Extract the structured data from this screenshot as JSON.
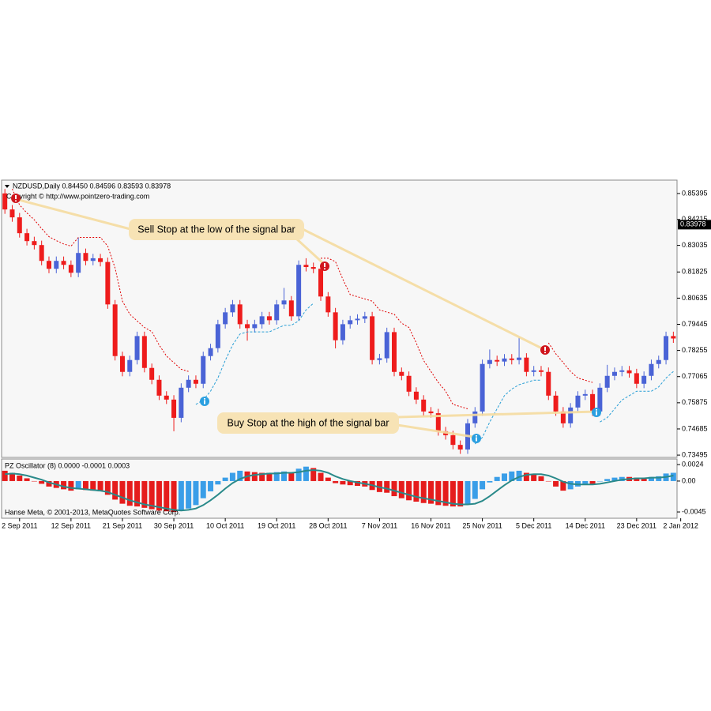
{
  "chart_data": {
    "type": "candlestick",
    "header": "NZDUSD,Daily  0.84450 0.84596 0.83593 0.83978",
    "copyright": "Copyright © http://www.pointzero-trading.com",
    "footer": "Hanse Meta, © 2001-2013, MetaQuotes Software Corp.",
    "annotations": [
      "Sell Stop at the low of the signal bar",
      "Buy Stop at the high of the signal bar"
    ],
    "bull_color": "#4a63d6",
    "bear_color": "#ee1c1c",
    "open": [
      0.854,
      0.8467,
      0.8431,
      0.8359,
      0.8323,
      0.8305,
      0.8233,
      0.8197,
      0.8233,
      0.8215,
      0.8179,
      0.8269,
      0.8233,
      0.8245,
      0.8228,
      0.8035,
      0.78,
      0.7728,
      0.7782,
      0.7891,
      0.7746,
      0.7692,
      0.762,
      0.7602,
      0.7519,
      0.7656,
      0.7692,
      0.7674,
      0.78,
      0.7836,
      0.7945,
      0.7999,
      0.8035,
      0.7945,
      0.7927,
      0.7945,
      0.7981,
      0.7963,
      0.8035,
      0.8053,
      0.7981,
      0.8215,
      0.8205,
      0.8197,
      0.8071,
      0.7999,
      0.7872,
      0.7945,
      0.7963,
      0.797,
      0.7981,
      0.7782,
      0.779,
      0.7909,
      0.7728,
      0.771,
      0.7638,
      0.7602,
      0.7548,
      0.754,
      0.7458,
      0.744,
      0.7396,
      0.7375,
      0.7494,
      0.7548,
      0.7764,
      0.7782,
      0.7775,
      0.7789,
      0.7782,
      0.7793,
      0.7728,
      0.7735,
      0.7728,
      0.762,
      0.7548,
      0.7494,
      0.7566,
      0.762,
      0.7627,
      0.7548,
      0.7656,
      0.771,
      0.7728,
      0.7735,
      0.7722,
      0.7674,
      0.771,
      0.7764,
      0.7782,
      0.7891
    ],
    "high": [
      0.856,
      0.8487,
      0.8451,
      0.8379,
      0.8343,
      0.8325,
      0.8253,
      0.8253,
      0.8253,
      0.8235,
      0.834,
      0.8289,
      0.8265,
      0.8265,
      0.8248,
      0.8055,
      0.782,
      0.7802,
      0.7911,
      0.7911,
      0.7766,
      0.7712,
      0.764,
      0.7622,
      0.7676,
      0.7712,
      0.7712,
      0.782,
      0.7856,
      0.7965,
      0.8019,
      0.8055,
      0.8055,
      0.7965,
      0.7965,
      0.8001,
      0.8001,
      0.8055,
      0.811,
      0.8073,
      0.8235,
      0.8245,
      0.8225,
      0.8217,
      0.8091,
      0.8019,
      0.7965,
      0.7983,
      0.799,
      0.8001,
      0.8001,
      0.781,
      0.7929,
      0.7929,
      0.7748,
      0.773,
      0.7658,
      0.7622,
      0.7568,
      0.756,
      0.7478,
      0.746,
      0.7416,
      0.7514,
      0.7568,
      0.7784,
      0.783,
      0.7802,
      0.7809,
      0.7809,
      0.7885,
      0.7813,
      0.7755,
      0.7755,
      0.7748,
      0.764,
      0.7568,
      0.7586,
      0.764,
      0.7647,
      0.7647,
      0.7676,
      0.776,
      0.7748,
      0.7755,
      0.7755,
      0.7742,
      0.773,
      0.7784,
      0.7802,
      0.7911,
      0.7911
    ],
    "low": [
      0.8447,
      0.8411,
      0.8339,
      0.8303,
      0.8285,
      0.8213,
      0.8177,
      0.8177,
      0.8195,
      0.8159,
      0.8159,
      0.8213,
      0.8213,
      0.8208,
      0.8015,
      0.778,
      0.7708,
      0.7708,
      0.7762,
      0.7726,
      0.7672,
      0.76,
      0.7582,
      0.7458,
      0.7499,
      0.7636,
      0.7654,
      0.7654,
      0.778,
      0.7816,
      0.7925,
      0.7979,
      0.7925,
      0.787,
      0.7907,
      0.7925,
      0.7943,
      0.7943,
      0.8015,
      0.7961,
      0.7961,
      0.8185,
      0.8177,
      0.8051,
      0.7979,
      0.7835,
      0.7852,
      0.7925,
      0.7943,
      0.795,
      0.7762,
      0.7762,
      0.777,
      0.7708,
      0.769,
      0.7618,
      0.7582,
      0.7528,
      0.752,
      0.7438,
      0.742,
      0.7376,
      0.7355,
      0.7355,
      0.7474,
      0.7528,
      0.7744,
      0.7755,
      0.7755,
      0.7762,
      0.7762,
      0.7708,
      0.7708,
      0.7708,
      0.76,
      0.7528,
      0.7474,
      0.7474,
      0.7546,
      0.76,
      0.7528,
      0.7528,
      0.7636,
      0.769,
      0.7708,
      0.7702,
      0.7654,
      0.7654,
      0.769,
      0.7744,
      0.7762,
      0.786
    ],
    "close": [
      0.8467,
      0.8431,
      0.8359,
      0.8323,
      0.8305,
      0.8233,
      0.8197,
      0.8233,
      0.8215,
      0.8179,
      0.8269,
      0.8233,
      0.8245,
      0.8228,
      0.8035,
      0.78,
      0.7728,
      0.7782,
      0.7891,
      0.7746,
      0.7692,
      0.762,
      0.7602,
      0.7519,
      0.7656,
      0.7692,
      0.7674,
      0.78,
      0.7836,
      0.7945,
      0.7999,
      0.8035,
      0.7945,
      0.7927,
      0.7945,
      0.7981,
      0.7963,
      0.8035,
      0.8053,
      0.7981,
      0.8215,
      0.8205,
      0.8197,
      0.8071,
      0.7999,
      0.7872,
      0.7945,
      0.7963,
      0.797,
      0.7981,
      0.7782,
      0.779,
      0.7909,
      0.7728,
      0.771,
      0.7638,
      0.7602,
      0.7548,
      0.754,
      0.7458,
      0.744,
      0.7396,
      0.7375,
      0.7494,
      0.7548,
      0.7764,
      0.7782,
      0.7775,
      0.7789,
      0.7782,
      0.7793,
      0.7728,
      0.7735,
      0.7728,
      0.762,
      0.7548,
      0.7494,
      0.7566,
      0.762,
      0.7627,
      0.7548,
      0.7656,
      0.771,
      0.7728,
      0.7735,
      0.7722,
      0.7674,
      0.771,
      0.7764,
      0.7782,
      0.7891,
      0.788
    ],
    "stops": [
      {
        "color": "#e00000",
        "dash": "2 2",
        "values": [
          null,
          0.856,
          0.8487,
          0.8451,
          0.842,
          0.838,
          0.8343,
          0.8325,
          0.831,
          0.83,
          0.834,
          0.834,
          0.834,
          0.834,
          0.83,
          0.82,
          0.805,
          0.799,
          0.796,
          0.793,
          0.7911,
          0.785,
          0.78,
          0.777,
          0.774,
          0.773,
          null,
          null,
          null,
          null,
          null,
          null,
          null,
          null,
          null,
          null,
          null,
          null,
          null,
          null,
          null,
          null,
          null,
          0.8245,
          0.8245,
          0.823,
          0.815,
          0.808,
          0.807,
          0.806,
          0.805,
          0.801,
          0.8,
          0.799,
          0.795,
          0.793,
          0.786,
          0.778,
          0.773,
          0.768,
          0.764,
          0.758,
          0.757,
          0.756,
          null,
          null,
          null,
          null,
          null,
          null,
          null,
          null,
          null,
          null,
          0.786,
          0.781,
          0.777,
          0.773,
          0.77,
          0.769,
          0.768,
          null,
          null,
          null,
          null,
          null,
          null,
          null,
          null,
          null,
          null,
          null
        ]
      },
      {
        "color": "#2a9fd6",
        "dash": "3 2",
        "values": [
          null,
          null,
          null,
          null,
          null,
          null,
          null,
          null,
          null,
          null,
          null,
          null,
          null,
          null,
          null,
          null,
          null,
          null,
          null,
          null,
          null,
          null,
          null,
          null,
          null,
          null,
          0.758,
          0.76,
          0.764,
          0.77,
          0.778,
          0.785,
          0.79,
          0.791,
          0.791,
          0.791,
          0.791,
          0.7925,
          0.794,
          0.794,
          0.796,
          0.801,
          0.804,
          null,
          null,
          null,
          null,
          null,
          null,
          null,
          null,
          null,
          null,
          null,
          null,
          null,
          null,
          null,
          null,
          null,
          null,
          null,
          null,
          null,
          0.74,
          0.743,
          0.75,
          0.756,
          0.762,
          0.765,
          0.767,
          0.768,
          0.769,
          0.769,
          null,
          null,
          null,
          null,
          null,
          null,
          null,
          0.75,
          0.752,
          0.756,
          0.76,
          0.762,
          0.764,
          0.764,
          0.764,
          0.766,
          0.77,
          0.773
        ]
      }
    ],
    "ylim": [
      0.7339,
      0.8586
    ],
    "yticks": [
      0.85395,
      0.84215,
      0.83035,
      0.81825,
      0.80635,
      0.79445,
      0.78255,
      0.77065,
      0.75875,
      0.74685,
      0.73495
    ],
    "current_price": 0.83978,
    "xlim": [
      -0.45,
      91.5
    ],
    "xticks": [
      {
        "value": 2,
        "label": "2 Sep 2011"
      },
      {
        "value": 9,
        "label": "12 Sep 2011"
      },
      {
        "value": 16,
        "label": "21 Sep 2011"
      },
      {
        "value": 23,
        "label": "30 Sep 2011"
      },
      {
        "value": 30,
        "label": "10 Oct 2011"
      },
      {
        "value": 37,
        "label": "19 Oct 2011"
      },
      {
        "value": 44,
        "label": "28 Oct 2011"
      },
      {
        "value": 51,
        "label": "7 Nov 2011"
      },
      {
        "value": 58,
        "label": "16 Nov 2011"
      },
      {
        "value": 65,
        "label": "25 Nov 2011"
      },
      {
        "value": 72,
        "label": "5 Dec 2011"
      },
      {
        "value": 79,
        "label": "14 Dec 2011"
      },
      {
        "value": 86,
        "label": "23 Dec 2011"
      },
      {
        "value": 92,
        "label": "2 Jan 2012"
      }
    ],
    "oscillator": {
      "title": "PZ Oscillator (8) 0.0000 -0.0001 0.0003",
      "rise_color": "#3a9ee8",
      "fall_color": "#e51c1c",
      "signal_color": "#2a8a8a",
      "values": [
        0.0015,
        0.0012,
        0.0008,
        0.0004,
        0.0,
        -0.0004,
        -0.0008,
        -0.001,
        -0.0012,
        -0.0014,
        -0.0012,
        -0.0013,
        -0.0014,
        -0.0015,
        -0.002,
        -0.0027,
        -0.0033,
        -0.0036,
        -0.0037,
        -0.0039,
        -0.0041,
        -0.0043,
        -0.0044,
        -0.0045,
        -0.0043,
        -0.004,
        -0.0035,
        -0.0025,
        -0.0015,
        -0.0005,
        0.0005,
        0.0012,
        0.0015,
        0.0014,
        0.0013,
        0.0012,
        0.0012,
        0.0013,
        0.0014,
        0.0013,
        0.0018,
        0.0021,
        0.0019,
        0.0012,
        0.0005,
        -0.0003,
        -0.0005,
        -0.0006,
        -0.0007,
        -0.0008,
        -0.0013,
        -0.0016,
        -0.0017,
        -0.0022,
        -0.0025,
        -0.0028,
        -0.003,
        -0.0032,
        -0.0033,
        -0.0035,
        -0.0036,
        -0.0037,
        -0.0037,
        -0.0033,
        -0.0026,
        -0.0012,
        -0.0002,
        0.0006,
        0.0011,
        0.0014,
        0.0015,
        0.0012,
        0.001,
        0.0007,
        0.0,
        -0.0008,
        -0.0014,
        -0.0012,
        -0.0008,
        -0.0004,
        -0.0005,
        0.0,
        0.0003,
        0.0005,
        0.0006,
        0.0006,
        0.0005,
        0.0005,
        0.0006,
        0.0007,
        0.0011,
        0.0012
      ],
      "signal": [
        0.001,
        0.0011,
        0.001,
        0.0008,
        0.0005,
        0.0002,
        -0.0002,
        -0.0005,
        -0.0008,
        -0.001,
        -0.0011,
        -0.0012,
        -0.0013,
        -0.0014,
        -0.0016,
        -0.002,
        -0.0024,
        -0.0028,
        -0.0031,
        -0.0034,
        -0.0036,
        -0.0038,
        -0.004,
        -0.0042,
        -0.0043,
        -0.0042,
        -0.004,
        -0.0035,
        -0.0028,
        -0.002,
        -0.0011,
        -0.0003,
        0.0003,
        0.0007,
        0.0009,
        0.001,
        0.0011,
        0.0011,
        0.0012,
        0.0012,
        0.0013,
        0.0015,
        0.0016,
        0.0015,
        0.0012,
        0.0007,
        0.0003,
        0.0,
        -0.0002,
        -0.0004,
        -0.0006,
        -0.0009,
        -0.0011,
        -0.0014,
        -0.0017,
        -0.002,
        -0.0023,
        -0.0025,
        -0.0027,
        -0.0029,
        -0.0031,
        -0.0033,
        -0.0034,
        -0.0034,
        -0.0033,
        -0.0029,
        -0.0022,
        -0.0014,
        -0.0006,
        0.0001,
        0.0006,
        0.0009,
        0.001,
        0.001,
        0.0008,
        0.0004,
        -0.0001,
        -0.0004,
        -0.0005,
        -0.0005,
        -0.0005,
        -0.0004,
        -0.0002,
        0.0,
        0.0002,
        0.0003,
        0.0004,
        0.0004,
        0.0005,
        0.0005,
        0.0006,
        0.0008
      ],
      "ylim": [
        -0.0053,
        0.0031
      ],
      "yticks": [
        0.0024,
        {
          "value": 0,
          "label": "0.00"
        },
        -0.0045
      ]
    }
  }
}
